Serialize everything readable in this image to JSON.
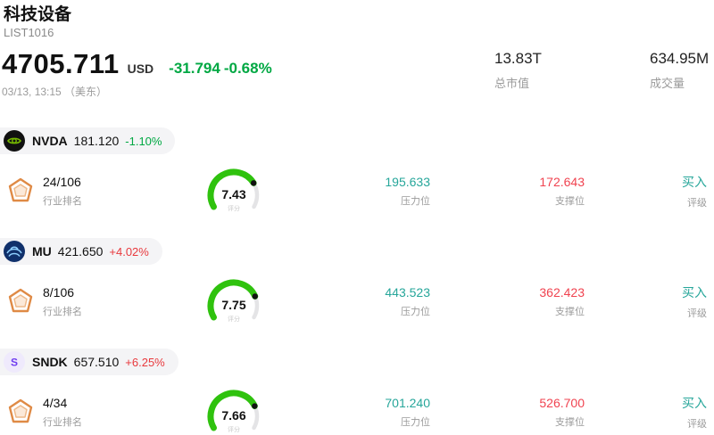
{
  "colors": {
    "down": "#00a843",
    "up": "#e8393d",
    "pressure": "#26a69a",
    "support": "#f04350",
    "buy": "#26a69a",
    "gauge": "#2fc20e"
  },
  "header": {
    "title": "科技设备",
    "subtitle": "LIST1016",
    "price": "4705.711",
    "currency": "USD",
    "change": "-31.794",
    "change_pct": "-0.68%",
    "change_color": "#00a843",
    "timestamp": "03/13, 13:15 （美东）",
    "market_cap": "13.83T",
    "market_cap_label": "总市值",
    "volume": "634.95M",
    "volume_label": "成交量"
  },
  "stocks": [
    {
      "ticker": "NVDA",
      "price": "181.120",
      "change": "-1.10%",
      "change_color": "#00a843",
      "rank": "24/106",
      "rank_label": "行业排名",
      "score": "7.43",
      "score_label": "评分",
      "resistance": "195.633",
      "resistance_label": "压力位",
      "support": "172.643",
      "support_label": "支撑位",
      "rating": "买入",
      "rating_label": "评级"
    },
    {
      "ticker": "MU",
      "price": "421.650",
      "change": "+4.02%",
      "change_color": "#e8393d",
      "rank": "8/106",
      "rank_label": "行业排名",
      "score": "7.75",
      "score_label": "评分",
      "resistance": "443.523",
      "resistance_label": "压力位",
      "support": "362.423",
      "support_label": "支撑位",
      "rating": "买入",
      "rating_label": "评级"
    },
    {
      "ticker": "SNDK",
      "price": "657.510",
      "change": "+6.25%",
      "change_color": "#e8393d",
      "rank": "4/34",
      "rank_label": "行业排名",
      "score": "7.66",
      "score_label": "评分",
      "resistance": "701.240",
      "resistance_label": "压力位",
      "support": "526.700",
      "support_label": "支撑位",
      "rating": "买入",
      "rating_label": "评级"
    }
  ]
}
